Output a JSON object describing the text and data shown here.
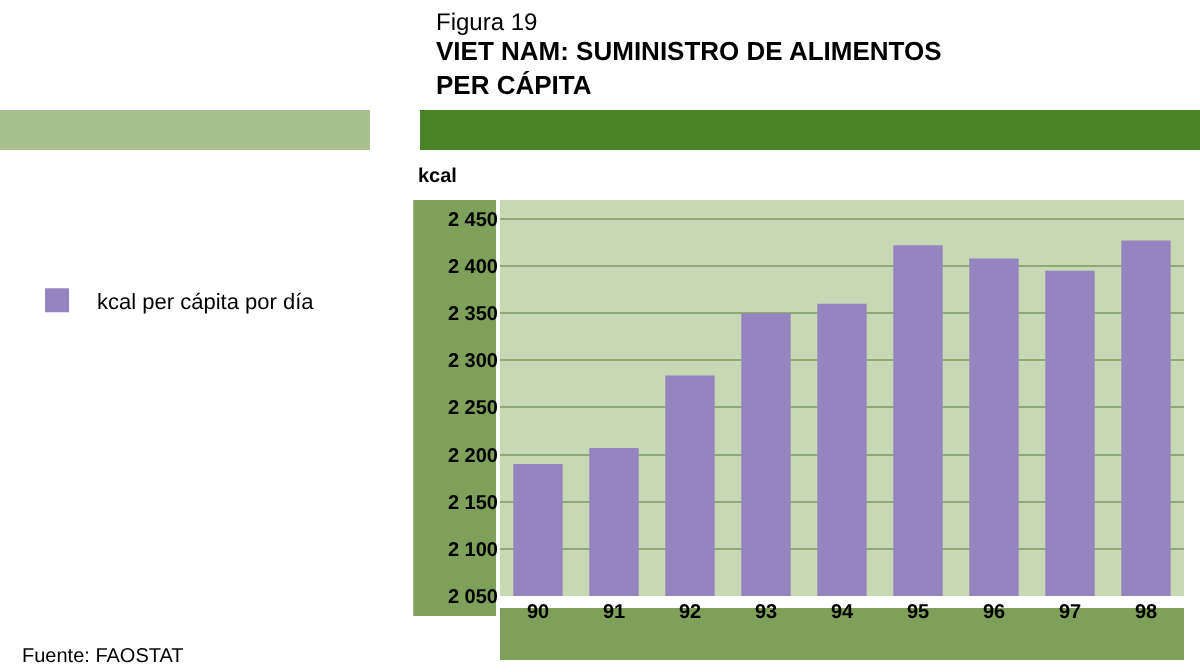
{
  "chart_data": {
    "type": "bar",
    "subtitle": "Figura 19",
    "title": "VIET NAM: SUMINISTRO DE ALIMENTOS PER CÁPITA",
    "ylabel": "kcal",
    "categories": [
      "90",
      "91",
      "92",
      "93",
      "94",
      "95",
      "96",
      "97",
      "98"
    ],
    "series": [
      {
        "name": "kcal per cápita por día",
        "color": "#9484c0",
        "values": [
          2190,
          2207,
          2284,
          2350,
          2360,
          2422,
          2408,
          2395,
          2427
        ]
      }
    ],
    "ylim": [
      2050,
      2470
    ],
    "yticks": [
      {
        "value": 2050,
        "label": "2 050"
      },
      {
        "value": 2100,
        "label": "2 100"
      },
      {
        "value": 2150,
        "label": "2 150"
      },
      {
        "value": 2200,
        "label": "2 200"
      },
      {
        "value": 2250,
        "label": "2 250"
      },
      {
        "value": 2300,
        "label": "2 300"
      },
      {
        "value": 2350,
        "label": "2 350"
      },
      {
        "value": 2400,
        "label": "2 400"
      },
      {
        "value": 2450,
        "label": "2 450"
      }
    ],
    "grid": "y",
    "legend": "left",
    "annotations": [
      "Fuente: FAOSTAT"
    ]
  }
}
